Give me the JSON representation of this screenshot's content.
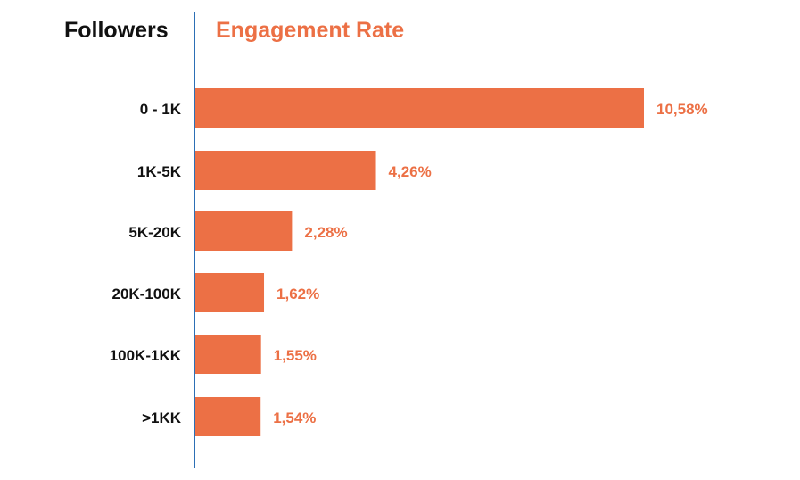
{
  "chart_data": {
    "type": "bar",
    "orientation": "horizontal",
    "title": "",
    "category_header": "Followers",
    "value_header": "Engagement Rate",
    "categories": [
      "0 - 1K",
      "1K-5K",
      "5K-20K",
      "20K-100K",
      "100K-1KK",
      ">1KK"
    ],
    "values": [
      10.58,
      4.26,
      2.28,
      1.62,
      1.55,
      1.54
    ],
    "value_labels": [
      "10,58%",
      "4,26%",
      "2,28%",
      "1,62%",
      "1,55%",
      "1,54%"
    ],
    "unit": "%",
    "xlim": [
      0,
      10.58
    ],
    "grid": false,
    "colors": {
      "bar": "#EC7045",
      "value_label": "#EC7045",
      "axis": "#2C6FB5",
      "text": "#111111"
    }
  }
}
